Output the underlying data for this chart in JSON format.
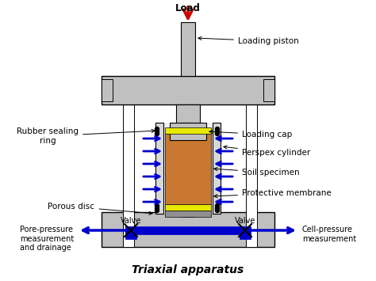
{
  "title": "Triaxial apparatus",
  "background_color": "#ffffff",
  "gray_color": "#c0c0c0",
  "light_gray": "#d8d8d8",
  "blue_color": "#0000cc",
  "orange_color": "#c87830",
  "yellow_color": "#e8e800",
  "red_color": "#cc0000",
  "white_color": "#ffffff",
  "dark_blue": "#000099",
  "labels": {
    "load": "Load",
    "loading_piston": "Loading piston",
    "loading_cap": "Loading cap",
    "perspex_cylinder": "Perspex cylinder",
    "soil_specimen": "Soil specimen",
    "protective_membrane": "Protective membrane",
    "rubber_sealing": "Rubber sealing\nring",
    "porous_disc": "Porous disc",
    "pore_pressure": "Pore-pressure\nmeasurement\nand drainage",
    "valve_left": "Valve",
    "valve_right": "Valve",
    "cell_pressure": "Cell-pressure\nmeasurement"
  }
}
